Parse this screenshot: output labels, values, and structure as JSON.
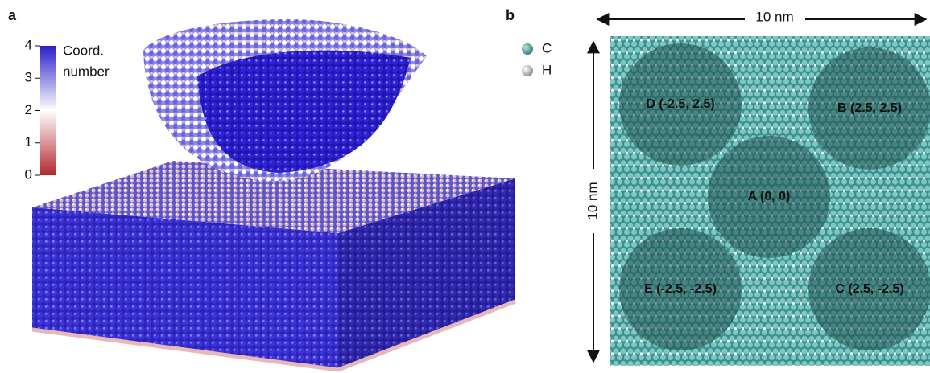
{
  "panels": [
    {
      "label": "a",
      "colorbar": {
        "title_lines": [
          "Coord.",
          "number"
        ],
        "ticks": [
          0,
          1,
          2,
          3,
          4
        ],
        "range": [
          0,
          4
        ]
      }
    },
    {
      "label": "b",
      "legend": [
        "C",
        "H"
      ],
      "width_label": "10 nm",
      "height_label": "10 nm",
      "regions": [
        "A (0, 0)",
        "B (2.5, 2.5)",
        "C (2.5, -2.5)",
        "D (-2.5, 2.5)",
        "E (-2.5, -2.5)"
      ]
    }
  ]
}
